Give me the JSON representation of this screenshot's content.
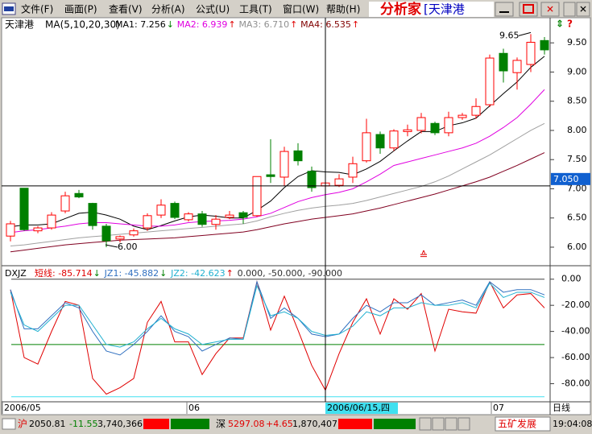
{
  "menu": {
    "items": [
      "文件(F)",
      "画面(P)",
      "查看(V)",
      "分析(A)",
      "公式(U)",
      "工具(T)",
      "窗口(W)",
      "帮助(H)"
    ]
  },
  "title_bar": {
    "app": "分析家",
    "stock": "[天津港"
  },
  "main_chart": {
    "type": "candlestick",
    "stock": "天津港",
    "indicator": "MA(5,10,20,30)",
    "ma_labels": [
      {
        "text": "MA1: 7.256",
        "arrow": "↓",
        "color": "#000000"
      },
      {
        "text": "MA2: 6.939",
        "arrow": "↑",
        "color": "#e000e0"
      },
      {
        "text": "MA3: 6.710",
        "arrow": "↑",
        "color": "#909090"
      },
      {
        "text": "MA4: 6.535",
        "arrow": "↑",
        "color": "#800000"
      }
    ],
    "ylim": [
      5.71,
      9.71
    ],
    "yticks": [
      {
        "value": 6,
        "label": "6.00"
      },
      {
        "value": 6.5,
        "label": "6.50"
      },
      {
        "value": 7,
        "label": "7.00"
      },
      {
        "value": 7.5,
        "label": "7.50"
      },
      {
        "value": 8,
        "label": "8.00"
      },
      {
        "value": 8.5,
        "label": "8.50"
      },
      {
        "value": 9,
        "label": "9.00"
      },
      {
        "value": 9.5,
        "label": "9.50"
      }
    ],
    "up_color": "#ff0000",
    "down_color": "#008000",
    "candles": [
      {
        "open": 6.19,
        "close": 6.4,
        "high": 6.45,
        "low": 6.1
      },
      {
        "open": 7.01,
        "close": 6.3,
        "high": 7.01,
        "low": 6.28
      },
      {
        "open": 6.28,
        "close": 6.33,
        "high": 6.36,
        "low": 6.24
      },
      {
        "open": 6.33,
        "close": 6.55,
        "high": 6.6,
        "low": 6.3
      },
      {
        "open": 6.62,
        "close": 6.88,
        "high": 6.95,
        "low": 6.58
      },
      {
        "open": 6.92,
        "close": 6.86,
        "high": 6.98,
        "low": 6.84
      },
      {
        "open": 6.75,
        "close": 6.37,
        "high": 6.76,
        "low": 6.3
      },
      {
        "open": 6.36,
        "close": 6.11,
        "high": 6.4,
        "low": 6.0
      },
      {
        "open": 6.14,
        "close": 6.18,
        "high": 6.2,
        "low": 6.08
      },
      {
        "open": 6.21,
        "close": 6.28,
        "high": 6.32,
        "low": 6.18
      },
      {
        "open": 6.33,
        "close": 6.54,
        "high": 6.58,
        "low": 6.28
      },
      {
        "open": 6.55,
        "close": 6.72,
        "high": 6.82,
        "low": 6.5
      },
      {
        "open": 6.75,
        "close": 6.51,
        "high": 6.78,
        "low": 6.48
      },
      {
        "open": 6.47,
        "close": 6.57,
        "high": 6.6,
        "low": 6.44
      },
      {
        "open": 6.57,
        "close": 6.39,
        "high": 6.62,
        "low": 6.35
      },
      {
        "open": 6.39,
        "close": 6.48,
        "high": 6.55,
        "low": 6.3
      },
      {
        "open": 6.51,
        "close": 6.55,
        "high": 6.62,
        "low": 6.48
      },
      {
        "open": 6.59,
        "close": 6.51,
        "high": 6.62,
        "low": 6.4
      },
      {
        "open": 6.54,
        "close": 7.21,
        "high": 7.21,
        "low": 6.52
      },
      {
        "open": 7.24,
        "close": 7.21,
        "high": 7.85,
        "low": 7.1
      },
      {
        "open": 7.2,
        "close": 7.64,
        "high": 7.72,
        "low": 7.05
      },
      {
        "open": 7.65,
        "close": 7.48,
        "high": 7.78,
        "low": 7.4
      },
      {
        "open": 7.3,
        "close": 7.02,
        "high": 7.38,
        "low": 6.95
      },
      {
        "open": 7.05,
        "close": 7.1,
        "high": 7.12,
        "low": 7.0
      },
      {
        "open": 7.06,
        "close": 7.17,
        "high": 7.25,
        "low": 7.03
      },
      {
        "open": 7.2,
        "close": 7.43,
        "high": 7.55,
        "low": 7.1
      },
      {
        "open": 7.48,
        "close": 7.96,
        "high": 8.2,
        "low": 7.45
      },
      {
        "open": 7.93,
        "close": 7.7,
        "high": 7.98,
        "low": 7.6
      },
      {
        "open": 7.7,
        "close": 7.99,
        "high": 8.02,
        "low": 7.65
      },
      {
        "open": 7.98,
        "close": 8.01,
        "high": 8.1,
        "low": 7.9
      },
      {
        "open": 8.0,
        "close": 8.22,
        "high": 8.3,
        "low": 7.95
      },
      {
        "open": 8.12,
        "close": 7.96,
        "high": 8.15,
        "low": 7.92
      },
      {
        "open": 7.96,
        "close": 8.22,
        "high": 8.32,
        "low": 7.9
      },
      {
        "open": 8.22,
        "close": 8.26,
        "high": 8.3,
        "low": 8.18
      },
      {
        "open": 8.26,
        "close": 8.41,
        "high": 8.55,
        "low": 8.2
      },
      {
        "open": 8.44,
        "close": 9.24,
        "high": 9.3,
        "low": 8.4
      },
      {
        "open": 9.32,
        "close": 9.02,
        "high": 9.4,
        "low": 8.82
      },
      {
        "open": 8.99,
        "close": 9.2,
        "high": 9.25,
        "low": 8.7
      },
      {
        "open": 9.13,
        "close": 9.51,
        "high": 9.65,
        "low": 9.0
      },
      {
        "open": 9.54,
        "close": 9.38,
        "high": 9.6,
        "low": 9.3
      }
    ],
    "ma_series": [
      {
        "color": "#000000",
        "values": [
          6.35,
          6.38,
          6.38,
          6.4,
          6.49,
          6.58,
          6.6,
          6.55,
          6.48,
          6.36,
          6.3,
          6.37,
          6.45,
          6.52,
          6.55,
          6.53,
          6.5,
          6.5,
          6.63,
          6.79,
          7.02,
          7.21,
          7.31,
          7.29,
          7.28,
          7.24,
          7.34,
          7.47,
          7.65,
          7.82,
          7.98,
          7.98,
          8.08,
          8.13,
          8.21,
          8.42,
          8.63,
          8.83,
          9.08,
          9.27
        ]
      },
      {
        "color": "#e000e0",
        "values": [
          6.25,
          6.28,
          6.3,
          6.33,
          6.36,
          6.4,
          6.42,
          6.42,
          6.4,
          6.38,
          6.36,
          6.36,
          6.38,
          6.42,
          6.44,
          6.45,
          6.46,
          6.48,
          6.52,
          6.58,
          6.68,
          6.78,
          6.85,
          6.9,
          6.94,
          7.0,
          7.12,
          7.25,
          7.4,
          7.46,
          7.52,
          7.58,
          7.64,
          7.7,
          7.78,
          7.9,
          8.05,
          8.22,
          8.45,
          8.7
        ]
      },
      {
        "color": "#a0a0a0",
        "values": [
          6.02,
          6.04,
          6.07,
          6.1,
          6.13,
          6.16,
          6.18,
          6.2,
          6.22,
          6.24,
          6.26,
          6.28,
          6.3,
          6.32,
          6.34,
          6.36,
          6.38,
          6.4,
          6.45,
          6.52,
          6.58,
          6.63,
          6.67,
          6.7,
          6.72,
          6.75,
          6.8,
          6.86,
          6.92,
          6.98,
          7.04,
          7.12,
          7.22,
          7.34,
          7.46,
          7.58,
          7.72,
          7.86,
          8.0,
          8.12
        ]
      },
      {
        "color": "#800020",
        "values": [
          5.92,
          5.95,
          5.98,
          6.01,
          6.04,
          6.06,
          6.08,
          6.1,
          6.12,
          6.13,
          6.14,
          6.15,
          6.16,
          6.18,
          6.2,
          6.22,
          6.24,
          6.26,
          6.3,
          6.35,
          6.4,
          6.44,
          6.48,
          6.51,
          6.54,
          6.57,
          6.62,
          6.67,
          6.73,
          6.79,
          6.85,
          6.91,
          6.98,
          7.05,
          7.12,
          7.2,
          7.3,
          7.4,
          7.51,
          7.62
        ]
      }
    ],
    "current_price": {
      "value": 7.05,
      "label": "7.050"
    },
    "high_marker": {
      "value": 9.65,
      "label": "9.65"
    },
    "low_marker": {
      "value": 6.0,
      "label": "6.00"
    }
  },
  "lower_chart": {
    "type": "line",
    "indicator": "DXJZ",
    "labels": [
      {
        "text": "短线: -85.714",
        "arrow": "↓",
        "color": "#e00000"
      },
      {
        "text": "JZ1: -45.882",
        "arrow": "↓",
        "color": "#3070c0"
      },
      {
        "text": "JZ2: -42.623",
        "arrow": "↑",
        "color": "#20b0d0"
      },
      {
        "text": "0.000, -50.000, -90.000",
        "color": "#303030"
      }
    ],
    "ylim": [
      -92,
      6
    ],
    "yticks": [
      {
        "value": 0,
        "label": "0.00"
      },
      {
        "value": -20,
        "label": "-20.00"
      },
      {
        "value": -40,
        "label": "-40.00"
      },
      {
        "value": -60,
        "label": "-60.00"
      },
      {
        "value": -80,
        "label": "-80.00"
      }
    ],
    "reference_lines": [
      {
        "value": 0,
        "color": "#404040"
      },
      {
        "value": -50,
        "color": "#008000"
      },
      {
        "value": -90,
        "color": "#40e0f0"
      }
    ],
    "series": [
      {
        "color": "#e00000",
        "values": [
          -8,
          -60,
          -65,
          -40,
          -17,
          -20,
          -76,
          -88,
          -83,
          -76,
          -33,
          -17,
          -48,
          -48,
          -73,
          -57,
          -45,
          -45,
          -2,
          -39,
          -13,
          -39,
          -66,
          -85,
          -57,
          -33,
          -15,
          -42,
          -15,
          -23,
          -11,
          -55,
          -23,
          -25,
          -26,
          -2,
          -22,
          -12,
          -11,
          -22
        ]
      },
      {
        "color": "#3070c0",
        "values": [
          -8,
          -38,
          -38,
          -28,
          -18,
          -22,
          -40,
          -55,
          -58,
          -50,
          -40,
          -28,
          -40,
          -44,
          -55,
          -50,
          -45,
          -46,
          -2,
          -30,
          -22,
          -30,
          -42,
          -44,
          -42,
          -30,
          -20,
          -25,
          -18,
          -18,
          -12,
          -20,
          -18,
          -16,
          -20,
          -2,
          -10,
          -8,
          -8,
          -12
        ]
      },
      {
        "color": "#20b0d0",
        "values": [
          -10,
          -35,
          -40,
          -30,
          -20,
          -20,
          -35,
          -50,
          -52,
          -48,
          -38,
          -30,
          -38,
          -42,
          -50,
          -48,
          -46,
          -46,
          -5,
          -28,
          -25,
          -30,
          -40,
          -43,
          -42,
          -36,
          -25,
          -28,
          -22,
          -22,
          -18,
          -20,
          -20,
          -18,
          -22,
          -3,
          -14,
          -10,
          -10,
          -14
        ]
      }
    ]
  },
  "date_axis": {
    "labels": [
      "2006/05",
      "06",
      "07"
    ],
    "crosshair_date": "2006/06/15,四",
    "period": "日线"
  },
  "status_bar": {
    "sh_label": "沪",
    "sh_index": "2050.81",
    "sh_change": "-11.55",
    "sh_volume": "3,740,366",
    "sz_label": "深",
    "sz_index": "5297.08",
    "sz_change": "+4.65",
    "sz_volume": "1,870,407",
    "ticker": "五矿发展",
    "time": "19:04:08"
  }
}
